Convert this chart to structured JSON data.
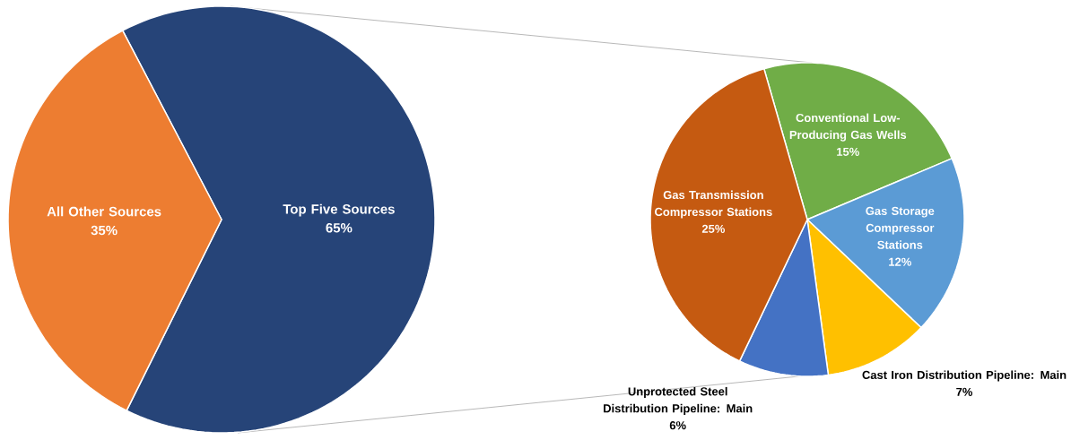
{
  "chart_data": [
    {
      "type": "pie",
      "categories": [
        "Top Five Sources",
        "All Other Sources"
      ],
      "values": [
        65,
        35
      ],
      "colors": [
        "#264478",
        "#ED7D31"
      ],
      "value_labels": [
        "65%",
        "35%"
      ]
    },
    {
      "type": "pie",
      "categories": [
        "Conventional Low-Producing Gas Wells",
        "Gas Storage Compressor Stations",
        "Cast Iron Distribution Pipeline: Main",
        "Unprotected Steel Distribution Pipeline: Main",
        "Gas Transmission Compressor Stations"
      ],
      "values": [
        15,
        12,
        7,
        6,
        25
      ],
      "colors": [
        "#70AD47",
        "#5B9BD5",
        "#FFC000",
        "#4472C4",
        "#C55A11"
      ],
      "value_labels": [
        "15%",
        "12%",
        "7%",
        "6%",
        "25%"
      ]
    }
  ]
}
